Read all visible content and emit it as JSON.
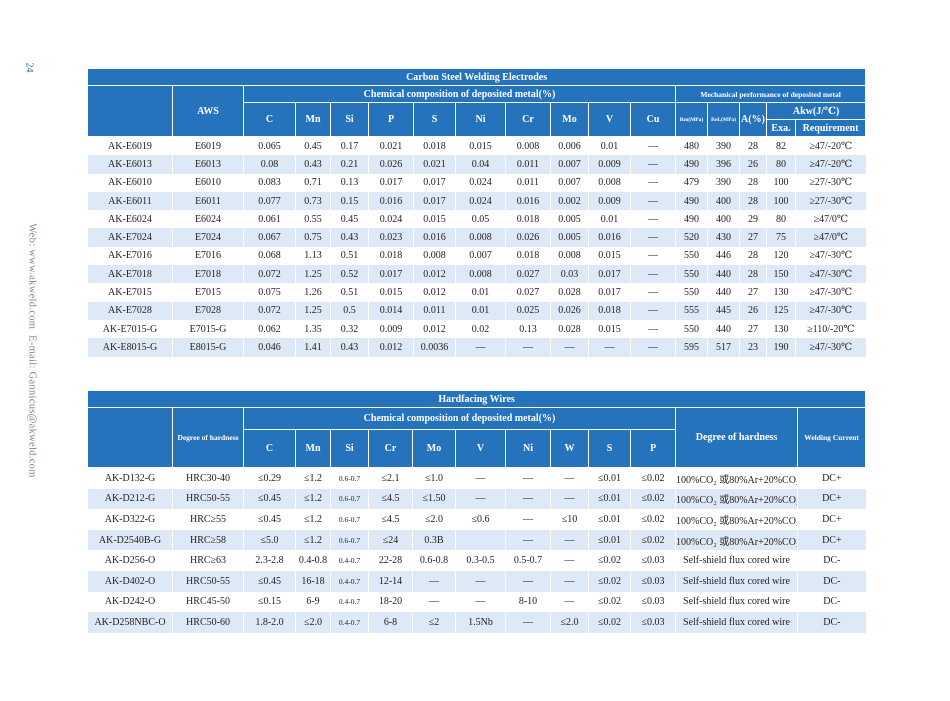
{
  "page_number": "24",
  "side_text": "Web: www.akweld.com  E-mail: Gannicus@akweld.com",
  "table1": {
    "title": "Carbon Steel Welding Electrodes",
    "header": {
      "aws": "AWS",
      "chemical": "Chemical  composition of deposited metal(%)",
      "mechanical": "Mechanical performance of deposited metal",
      "elements": [
        "C",
        "Mn",
        "Si",
        "P",
        "S",
        "Ni",
        "Cr",
        "Mo",
        "V",
        "Cu"
      ],
      "rm": "Rm(MPa)",
      "rel": "ReL(MPa)",
      "a": "A(%)",
      "akw": "Akw(J/℃)",
      "exa": "Exa.",
      "requirement": "Requirement"
    },
    "rows": [
      [
        "AK-E6019",
        "E6019",
        "0.065",
        "0.45",
        "0.17",
        "0.021",
        "0.018",
        "0.015",
        "0.008",
        "0.006",
        "0.01",
        "—",
        "480",
        "390",
        "28",
        "82",
        "≥47/-20℃"
      ],
      [
        "AK-E6013",
        "E6013",
        "0.08",
        "0.43",
        "0.21",
        "0.026",
        "0.021",
        "0.04",
        "0.011",
        "0.007",
        "0.009",
        "—",
        "490",
        "396",
        "26",
        "80",
        "≥47/-20℃"
      ],
      [
        "AK-E6010",
        "E6010",
        "0.083",
        "0.71",
        "0.13",
        "0.017",
        "0.017",
        "0.024",
        "0.011",
        "0.007",
        "0.008",
        "—",
        "479",
        "390",
        "28",
        "100",
        "≥27/-30℃"
      ],
      [
        "AK-E6011",
        "E6011",
        "0.077",
        "0.73",
        "0.15",
        "0.016",
        "0.017",
        "0.024",
        "0.016",
        "0.002",
        "0.009",
        "—",
        "490",
        "400",
        "28",
        "100",
        "≥27/-30℃"
      ],
      [
        "AK-E6024",
        "E6024",
        "0.061",
        "0.55",
        "0.45",
        "0.024",
        "0.015",
        "0.05",
        "0.018",
        "0.005",
        "0.01",
        "—",
        "490",
        "400",
        "29",
        "80",
        "≥47/0℃"
      ],
      [
        "AK-E7024",
        "E7024",
        "0.067",
        "0.75",
        "0.43",
        "0.023",
        "0.016",
        "0.008",
        "0.026",
        "0.005",
        "0.016",
        "—",
        "520",
        "430",
        "27",
        "75",
        "≥47/0℃"
      ],
      [
        "AK-E7016",
        "E7016",
        "0.068",
        "1.13",
        "0.51",
        "0.018",
        "0.008",
        "0.007",
        "0.018",
        "0.008",
        "0.015",
        "—",
        "550",
        "446",
        "28",
        "120",
        "≥47/-30℃"
      ],
      [
        "AK-E7018",
        "E7018",
        "0.072",
        "1.25",
        "0.52",
        "0.017",
        "0.012",
        "0.008",
        "0.027",
        "0.03",
        "0.017",
        "—",
        "550",
        "440",
        "28",
        "150",
        "≥47/-30℃"
      ],
      [
        "AK-E7015",
        "E7015",
        "0.075",
        "1.26",
        "0.51",
        "0.015",
        "0.012",
        "0.01",
        "0.027",
        "0.028",
        "0.017",
        "—",
        "550",
        "440",
        "27",
        "130",
        "≥47/-30℃"
      ],
      [
        "AK-E7028",
        "E7028",
        "0.072",
        "1.25",
        "0.5",
        "0.014",
        "0.011",
        "0.01",
        "0.025",
        "0.026",
        "0.018",
        "—",
        "555",
        "445",
        "26",
        "125",
        "≥47/-30℃"
      ],
      [
        "AK-E7015-G",
        "E7015-G",
        "0.062",
        "1.35",
        "0.32",
        "0.009",
        "0.012",
        "0.02",
        "0.13",
        "0.028",
        "0.015",
        "—",
        "550",
        "440",
        "27",
        "130",
        "≥110/-20℃"
      ],
      [
        "AK-E8015-G",
        "E8015-G",
        "0.046",
        "1.41",
        "0.43",
        "0.012",
        "0.0036",
        "—",
        "—",
        "—",
        "—",
        "—",
        "595",
        "517",
        "23",
        "190",
        "≥47/-30℃"
      ]
    ]
  },
  "table2": {
    "title": "Hardfacing  Wires",
    "header": {
      "hardness": "Degree of hardness",
      "chemical": "Chemical  composition of deposited metal(%)",
      "elements": [
        "C",
        "Mn",
        "Si",
        "Cr",
        "Mo",
        "V",
        "Ni",
        "W",
        "S",
        "P"
      ],
      "degree": "Degree of hardness",
      "current": "Welding Current"
    },
    "rows": [
      [
        "AK-D132-G",
        "HRC30-40",
        "≤0.29",
        "≤1.2",
        "0.6-0.7",
        "≤2.1",
        "≤1.0",
        "—",
        "—",
        "—",
        "≤0.01",
        "≤0.02",
        "100%CO₂ 或80%Ar+20%CO₂",
        "DC+"
      ],
      [
        "AK-D212-G",
        "HRC50-55",
        "≤0.45",
        "≤1.2",
        "0.6-0.7",
        "≤4.5",
        "≤1.50",
        "—",
        "—",
        "—",
        "≤0.01",
        "≤0.02",
        "100%CO₂ 或80%Ar+20%CO₂",
        "DC+"
      ],
      [
        "AK-D322-G",
        "HRC≥55",
        "≤0.45",
        "≤1.2",
        "0.6-0.7",
        "≤4.5",
        "≤2.0",
        "≤0.6",
        "—",
        "≤10",
        "≤0.01",
        "≤0.02",
        "100%CO₂ 或80%Ar+20%CO₂",
        "DC+"
      ],
      [
        "AK-D2540B-G",
        "HRC≥58",
        "≤5.0",
        "≤1.2",
        "0.6-0.7",
        "≤24",
        "0.3B",
        null,
        "—",
        "—",
        "≤0.01",
        "≤0.02",
        "100%CO₂ 或80%Ar+20%CO₂",
        "DC+"
      ],
      [
        "AK-D256-O",
        "HRC≥63",
        "2.3-2.8",
        "0.4-0.8",
        "0.4-0.7",
        "22-28",
        "0.6-0.8",
        "0.3-0.5",
        "0.5-0.7",
        "—",
        "≤0.02",
        "≤0.03",
        "Self-shield flux cored wire",
        "DC-"
      ],
      [
        "AK-D402-O",
        "HRC50-55",
        "≤0.45",
        "16-18",
        "0.4-0.7",
        "12-14",
        "—",
        "—",
        "—",
        "—",
        "≤0.02",
        "≤0.03",
        "Self-shield flux cored wire",
        "DC-"
      ],
      [
        "AK-D242-O",
        "HRC45-50",
        "≤0.15",
        "6-9",
        "0.4-0.7",
        "18-20",
        "—",
        "—",
        "8-10",
        "—",
        "≤0.02",
        "≤0.03",
        "Self-shield flux cored wire",
        "DC-"
      ],
      [
        "AK-D258NBC-O",
        "HRC50-60",
        "1.8-2.0",
        "≤2.0",
        "0.4-0.7",
        "6-8",
        "≤2",
        "1.5Nb",
        "—",
        "≤2.0",
        "≤0.02",
        "≤0.03",
        "Self-shield flux cored wire",
        "DC-"
      ]
    ]
  }
}
